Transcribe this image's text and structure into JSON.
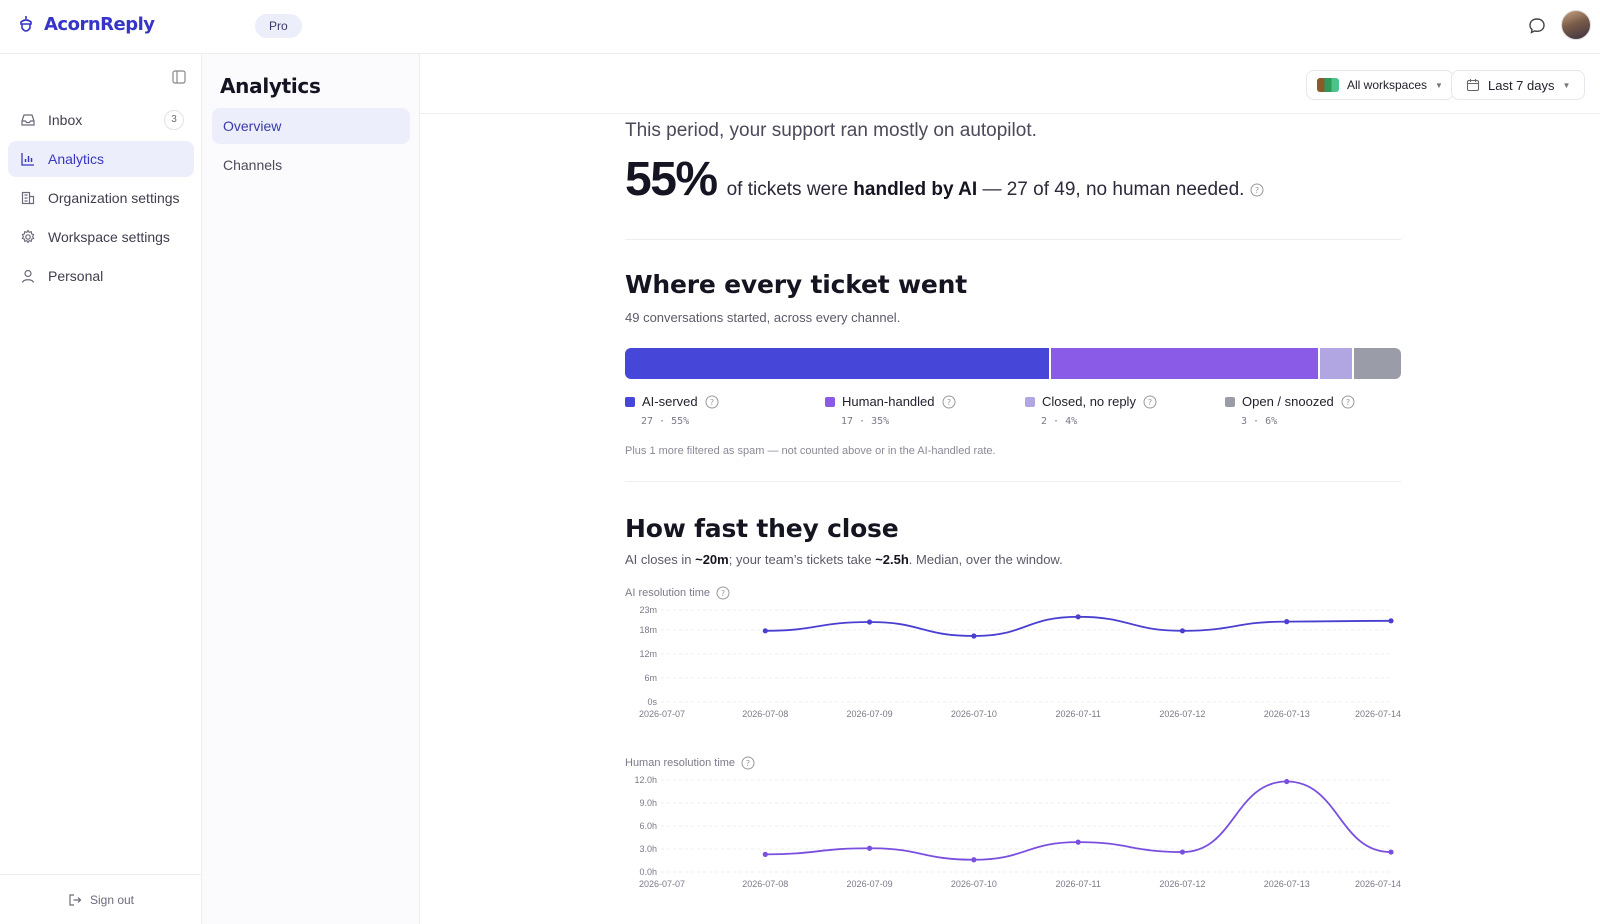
{
  "app": {
    "name": "AcornReply",
    "plan": "Pro",
    "brand_color": "#3535c8"
  },
  "sidebar": {
    "items": [
      {
        "label": "Inbox",
        "icon": "inbox-icon",
        "count": "3",
        "active": false
      },
      {
        "label": "Analytics",
        "icon": "bar-chart-icon",
        "active": true
      },
      {
        "label": "Organization settings",
        "icon": "building-icon",
        "active": false
      },
      {
        "label": "Workspace settings",
        "icon": "gear-icon",
        "active": false
      },
      {
        "label": "Personal",
        "icon": "user-icon",
        "active": false
      }
    ],
    "sign_out": "Sign out"
  },
  "subnav": {
    "title": "Analytics",
    "items": [
      {
        "label": "Overview",
        "active": true
      },
      {
        "label": "Channels",
        "active": false
      }
    ]
  },
  "filters": {
    "workspace": "All workspaces",
    "range": "Last 7 days"
  },
  "summary": {
    "headline": "This period, your support ran mostly on autopilot.",
    "big_number": "55%",
    "text_before": "of tickets were",
    "text_bold": "handled by AI",
    "text_after": "— 27 of 49, no human needed."
  },
  "distribution": {
    "title": "Where every ticket went",
    "subtitle": "49 conversations started, across every channel.",
    "segments": [
      {
        "name": "AI-served",
        "count": 27,
        "percent": "55%",
        "color": "#4646d8",
        "sub": "27 · 55%"
      },
      {
        "name": "Human-handled",
        "count": 17,
        "percent": "35%",
        "color": "#8a5be6",
        "sub": "17 · 35%"
      },
      {
        "name": "Closed, no reply",
        "count": 2,
        "percent": "4%",
        "color": "#b2a6e2",
        "sub": "2 · 4%"
      },
      {
        "name": "Open / snoozed",
        "count": 3,
        "percent": "6%",
        "color": "#9a9ca8",
        "sub": "3 · 6%"
      }
    ],
    "footnote": "Plus 1 more filtered as spam — not counted above or in the AI-handled rate."
  },
  "speed": {
    "title": "How fast they close",
    "subtitle_1": "AI closes in",
    "subtitle_ai": "~20m",
    "subtitle_2": "; your team’s tickets take",
    "subtitle_human": "~2.5h",
    "subtitle_3": ". Median, over the window."
  },
  "chart_data": [
    {
      "type": "line",
      "title": "AI resolution time",
      "x": [
        "2026-07-07",
        "2026-07-08",
        "2026-07-09",
        "2026-07-10",
        "2026-07-11",
        "2026-07-12",
        "2026-07-13",
        "2026-07-14"
      ],
      "x_ticks": [
        "2026-07-07",
        "2026-07-08",
        "2026-07-09",
        "2026-07-10",
        "2026-07-11",
        "2026-07-12",
        "2026-07-13",
        "2026-07-14"
      ],
      "values_minutes": [
        null,
        17.8,
        20,
        16.5,
        21.3,
        17.8,
        20.1,
        20.3
      ],
      "y_ticks": [
        "0s",
        "6m",
        "12m",
        "18m",
        "23m"
      ],
      "y_tick_values": [
        0,
        6,
        12,
        18,
        23
      ],
      "ylim": [
        0,
        23
      ],
      "color": "#4a3fd0",
      "grid": true
    },
    {
      "type": "line",
      "title": "Human resolution time",
      "x": [
        "2026-07-07",
        "2026-07-08",
        "2026-07-09",
        "2026-07-10",
        "2026-07-11",
        "2026-07-12",
        "2026-07-13",
        "2026-07-14"
      ],
      "x_ticks": [
        "2026-07-07",
        "2026-07-08",
        "2026-07-09",
        "2026-07-10",
        "2026-07-11",
        "2026-07-12",
        "2026-07-13",
        "2026-07-14"
      ],
      "values_hours": [
        null,
        2.3,
        3.1,
        1.6,
        3.9,
        2.6,
        11.8,
        2.6
      ],
      "y_ticks": [
        "0.0h",
        "3.0h",
        "6.0h",
        "9.0h",
        "12.0h"
      ],
      "y_tick_values": [
        0,
        3,
        6,
        9,
        12
      ],
      "ylim": [
        0,
        12
      ],
      "color": "#7a4fe0",
      "grid": true
    }
  ]
}
